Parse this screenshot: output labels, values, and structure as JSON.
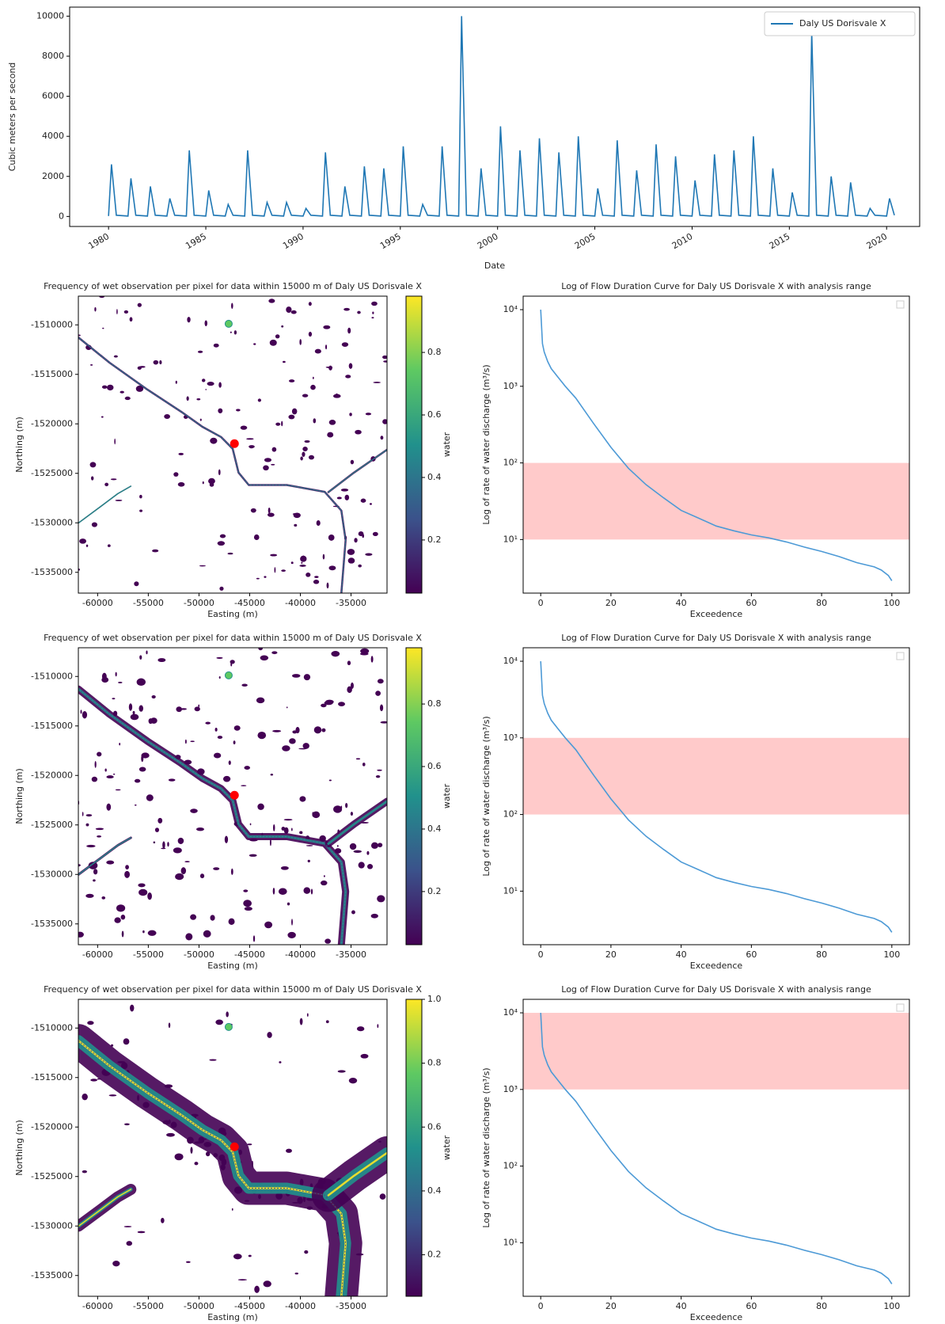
{
  "chart_data": [
    {
      "type": "line",
      "xlabel": "Date",
      "ylabel": "Cubic meters per second",
      "legend": "upper right",
      "xlim": [
        1978,
        2021.7
      ],
      "ylim": [
        -500,
        10450
      ],
      "xticks": [
        1980,
        1985,
        1990,
        1995,
        2000,
        2005,
        2010,
        2015,
        2020
      ],
      "yticks": [
        0,
        2000,
        4000,
        6000,
        8000,
        10000
      ],
      "x": [
        1980,
        1980.15,
        1980.4,
        1981,
        1981.15,
        1981.4,
        1982,
        1982.15,
        1982.4,
        1983,
        1983.15,
        1983.4,
        1984,
        1984.15,
        1984.4,
        1985,
        1985.15,
        1985.4,
        1986,
        1986.15,
        1986.4,
        1987,
        1987.15,
        1987.4,
        1988,
        1988.15,
        1988.4,
        1989,
        1989.15,
        1989.4,
        1990,
        1990.15,
        1990.4,
        1991,
        1991.15,
        1991.4,
        1992,
        1992.15,
        1992.4,
        1993,
        1993.15,
        1993.4,
        1994,
        1994.15,
        1994.4,
        1995,
        1995.15,
        1995.4,
        1996,
        1996.15,
        1996.4,
        1997,
        1997.15,
        1997.4,
        1998,
        1998.15,
        1998.4,
        1999,
        1999.15,
        1999.4,
        2000,
        2000.15,
        2000.4,
        2001,
        2001.15,
        2001.4,
        2002,
        2002.15,
        2002.4,
        2003,
        2003.15,
        2003.4,
        2004,
        2004.15,
        2004.4,
        2005,
        2005.15,
        2005.4,
        2006,
        2006.15,
        2006.4,
        2007,
        2007.15,
        2007.4,
        2008,
        2008.15,
        2008.4,
        2009,
        2009.15,
        2009.4,
        2010,
        2010.15,
        2010.4,
        2011,
        2011.15,
        2011.4,
        2012,
        2012.15,
        2012.4,
        2013,
        2013.15,
        2013.4,
        2014,
        2014.15,
        2014.4,
        2015,
        2015.15,
        2015.4,
        2016,
        2016.15,
        2016.4,
        2017,
        2017.15,
        2017.4,
        2018,
        2018.15,
        2018.4,
        2019,
        2019.15,
        2019.4,
        2020,
        2020.15,
        2020.4
      ],
      "series": [
        {
          "name": "Daly US Dorisvale X",
          "color": "#1f77b4",
          "values": [
            20,
            2600,
            60,
            20,
            1900,
            60,
            20,
            1500,
            60,
            20,
            900,
            60,
            20,
            3300,
            60,
            20,
            1300,
            60,
            20,
            600,
            60,
            20,
            3300,
            60,
            20,
            700,
            60,
            20,
            700,
            60,
            20,
            400,
            60,
            20,
            3200,
            60,
            20,
            1500,
            60,
            20,
            2500,
            60,
            20,
            2400,
            60,
            20,
            3500,
            60,
            20,
            600,
            60,
            20,
            3500,
            60,
            20,
            10000,
            60,
            20,
            2400,
            60,
            20,
            4500,
            60,
            20,
            3300,
            60,
            20,
            3900,
            60,
            20,
            3200,
            60,
            20,
            4000,
            60,
            20,
            1400,
            60,
            20,
            3800,
            60,
            20,
            2300,
            60,
            20,
            3600,
            60,
            20,
            3000,
            60,
            20,
            1800,
            60,
            20,
            3100,
            60,
            20,
            3300,
            60,
            20,
            4000,
            60,
            20,
            2400,
            60,
            20,
            1200,
            60,
            20,
            9200,
            60,
            20,
            2000,
            60,
            20,
            1700,
            60,
            20,
            400,
            60,
            20,
            900,
            60
          ]
        }
      ]
    },
    {
      "type": "map",
      "title": "Frequency of wet observation per pixel for data within 15000 m of Daly US Dorisvale X",
      "xlabel": "Easting (m)",
      "ylabel": "Northing (m)",
      "xlim": [
        -61900,
        -31450
      ],
      "ylim": [
        -1537100,
        -1507100
      ],
      "xticks": [
        -60000,
        -55000,
        -50000,
        -45000,
        -40000,
        -35000
      ],
      "yticks": [
        -1535000,
        -1530000,
        -1525000,
        -1520000,
        -1515000,
        -1510000
      ],
      "cmap": "viridis",
      "colorbar_label": "water",
      "clim": [
        0.03,
        0.98
      ],
      "colorbar_ticks": [
        0.2,
        0.4,
        0.6,
        0.8
      ],
      "point": {
        "x": -46500,
        "y": -1522000,
        "color": "#ff0000"
      }
    },
    {
      "type": "line",
      "log_y": true,
      "title": "Log of Flow Duration Curve for Daly US Dorisvale X with analysis range",
      "xlabel": "Exceedence",
      "ylabel": "Log of rate of water discharge (m³/s)",
      "xlim": [
        -5,
        105
      ],
      "ylim": [
        2,
        15000
      ],
      "xticks": [
        0,
        20,
        40,
        60,
        80,
        100
      ],
      "yticks": [
        {
          "value": 10,
          "label": "10¹"
        },
        {
          "value": 100,
          "label": "10²"
        },
        {
          "value": 1000,
          "label": "10³"
        },
        {
          "value": 10000,
          "label": "10⁴"
        }
      ],
      "band": [
        10,
        100
      ],
      "band_color": "#ffcaca",
      "x": [
        0,
        0.5,
        1,
        2,
        3,
        5,
        7,
        10,
        15,
        20,
        25,
        30,
        35,
        40,
        45,
        50,
        55,
        60,
        65,
        70,
        75,
        80,
        85,
        90,
        95,
        97,
        99,
        100
      ],
      "series": [
        {
          "color": "#4d9ad6",
          "values": [
            10000,
            3600,
            2800,
            2100,
            1700,
            1300,
            1000,
            700,
            330,
            160,
            85,
            52,
            35,
            24,
            19,
            15,
            13,
            11.5,
            10.5,
            9.3,
            8,
            7,
            6,
            5,
            4.4,
            4,
            3.4,
            2.9
          ]
        }
      ]
    },
    {
      "type": "map",
      "title": "Frequency of wet observation per pixel for data within 15000 m of Daly US Dorisvale X",
      "xlabel": "Easting (m)",
      "ylabel": "Northing (m)",
      "xlim": [
        -61900,
        -31450
      ],
      "ylim": [
        -1537100,
        -1507100
      ],
      "xticks": [
        -60000,
        -55000,
        -50000,
        -45000,
        -40000,
        -35000
      ],
      "yticks": [
        -1535000,
        -1530000,
        -1525000,
        -1520000,
        -1515000,
        -1510000
      ],
      "cmap": "viridis",
      "colorbar_label": "water",
      "clim": [
        0.03,
        0.98
      ],
      "colorbar_ticks": [
        0.2,
        0.4,
        0.6,
        0.8
      ],
      "point": {
        "x": -46500,
        "y": -1522000,
        "color": "#ff0000"
      }
    },
    {
      "type": "line",
      "log_y": true,
      "title": "Log of Flow Duration Curve for Daly US Dorisvale X with analysis range",
      "xlabel": "Exceedence",
      "ylabel": "Log of rate of water discharge (m³/s)",
      "xlim": [
        -5,
        105
      ],
      "ylim": [
        2,
        15000
      ],
      "xticks": [
        0,
        20,
        40,
        60,
        80,
        100
      ],
      "yticks": [
        {
          "value": 10,
          "label": "10¹"
        },
        {
          "value": 100,
          "label": "10²"
        },
        {
          "value": 1000,
          "label": "10³"
        },
        {
          "value": 10000,
          "label": "10⁴"
        }
      ],
      "band": [
        100,
        1000
      ],
      "band_color": "#ffcaca",
      "x": [
        0,
        0.5,
        1,
        2,
        3,
        5,
        7,
        10,
        15,
        20,
        25,
        30,
        35,
        40,
        45,
        50,
        55,
        60,
        65,
        70,
        75,
        80,
        85,
        90,
        95,
        97,
        99,
        100
      ],
      "series": [
        {
          "color": "#4d9ad6",
          "values": [
            10000,
            3600,
            2800,
            2100,
            1700,
            1300,
            1000,
            700,
            330,
            160,
            85,
            52,
            35,
            24,
            19,
            15,
            13,
            11.5,
            10.5,
            9.3,
            8,
            7,
            6,
            5,
            4.4,
            4,
            3.4,
            2.9
          ]
        }
      ]
    },
    {
      "type": "map",
      "title": "Frequency of wet observation per pixel for data within 15000 m of Daly US Dorisvale X",
      "xlabel": "Easting (m)",
      "ylabel": "Northing (m)",
      "xlim": [
        -61900,
        -31450
      ],
      "ylim": [
        -1537100,
        -1507100
      ],
      "xticks": [
        -60000,
        -55000,
        -50000,
        -45000,
        -40000,
        -35000
      ],
      "yticks": [
        -1535000,
        -1530000,
        -1525000,
        -1520000,
        -1515000,
        -1510000
      ],
      "cmap": "viridis",
      "colorbar_label": "water",
      "clim": [
        0.07,
        1.0
      ],
      "colorbar_ticks": [
        0.2,
        0.4,
        0.6,
        0.8,
        {
          "value": 1,
          "label": "1.0"
        }
      ],
      "point": {
        "x": -46500,
        "y": -1522000,
        "color": "#ff0000"
      }
    },
    {
      "type": "line",
      "log_y": true,
      "title": "Log of Flow Duration Curve for Daly US Dorisvale X with analysis range",
      "xlabel": "Exceedence",
      "ylabel": "Log of rate of water discharge (m³/s)",
      "xlim": [
        -5,
        105
      ],
      "ylim": [
        2,
        15000
      ],
      "xticks": [
        0,
        20,
        40,
        60,
        80,
        100
      ],
      "yticks": [
        {
          "value": 10,
          "label": "10¹"
        },
        {
          "value": 100,
          "label": "10²"
        },
        {
          "value": 1000,
          "label": "10³"
        },
        {
          "value": 10000,
          "label": "10⁴"
        }
      ],
      "band": [
        1000,
        10000
      ],
      "band_color": "#ffcaca",
      "x": [
        0,
        0.5,
        1,
        2,
        3,
        5,
        7,
        10,
        15,
        20,
        25,
        30,
        35,
        40,
        45,
        50,
        55,
        60,
        65,
        70,
        75,
        80,
        85,
        90,
        95,
        97,
        99,
        100
      ],
      "series": [
        {
          "color": "#4d9ad6",
          "values": [
            10000,
            3600,
            2800,
            2100,
            1700,
            1300,
            1000,
            700,
            330,
            160,
            85,
            52,
            35,
            24,
            19,
            15,
            13,
            11.5,
            10.5,
            9.3,
            8,
            7,
            6,
            5,
            4.4,
            4,
            3.4,
            2.9
          ]
        }
      ]
    }
  ]
}
